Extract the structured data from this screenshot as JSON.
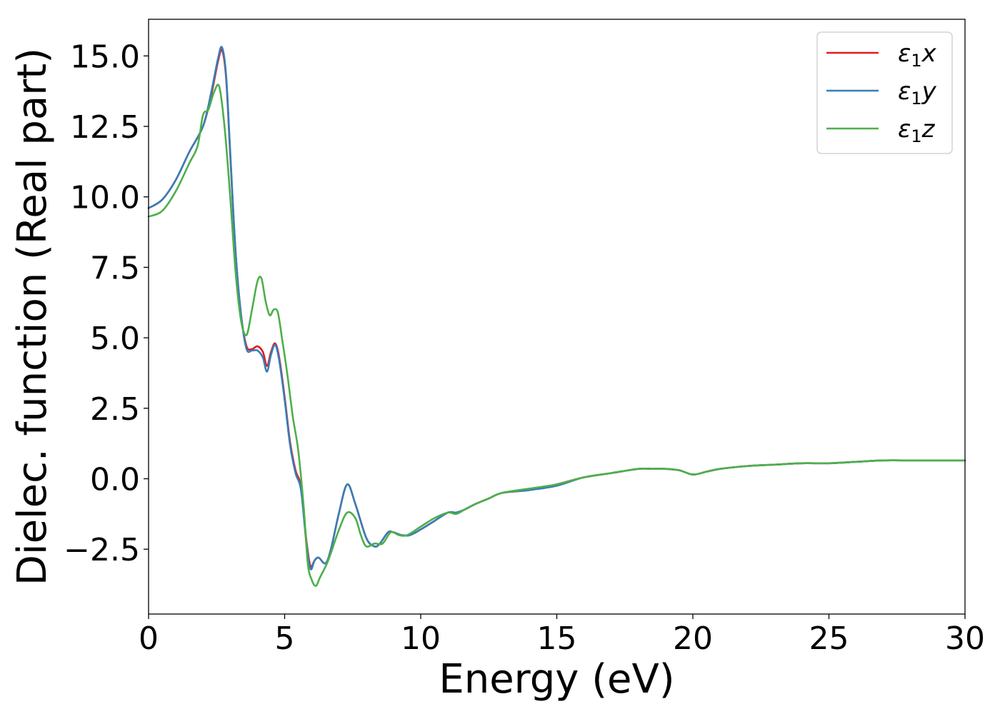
{
  "chart_data": {
    "type": "line",
    "title": "",
    "xlabel": "Energy (eV)",
    "ylabel": "Dielec. function (Real part)",
    "xlim": [
      0,
      30
    ],
    "ylim": [
      -4.8,
      16.3
    ],
    "x_ticks": [
      0,
      5,
      10,
      15,
      20,
      25,
      30
    ],
    "x_tick_labels": [
      "0",
      "5",
      "10",
      "15",
      "20",
      "25",
      "30"
    ],
    "y_ticks": [
      -2.5,
      0.0,
      2.5,
      5.0,
      7.5,
      10.0,
      12.5,
      15.0
    ],
    "y_tick_labels": [
      "−2.5",
      "0.0",
      "2.5",
      "5.0",
      "7.5",
      "10.0",
      "12.5",
      "15.0"
    ],
    "grid": false,
    "legend_position": "top-right",
    "series": [
      {
        "name": "ε1x",
        "legend_symbol": "ε",
        "legend_subscript": "1",
        "legend_component": "x",
        "color": "#e41a1c",
        "x": [
          0,
          0.5,
          1.0,
          1.5,
          2.0,
          2.3,
          2.55,
          2.7,
          2.85,
          3.0,
          3.2,
          3.4,
          3.6,
          3.8,
          4.0,
          4.2,
          4.35,
          4.5,
          4.65,
          4.8,
          5.0,
          5.2,
          5.4,
          5.6,
          5.8,
          5.95,
          6.1,
          6.25,
          6.5,
          6.7,
          7.0,
          7.3,
          7.6,
          8.0,
          8.3,
          8.5,
          8.8,
          9.0,
          9.3,
          9.6,
          10.0,
          10.5,
          11.0,
          11.3,
          11.6,
          12.0,
          12.5,
          13.0,
          14.0,
          15.0,
          16.0,
          17.0,
          18.0,
          18.5,
          19.0,
          19.5,
          20.0,
          20.5,
          21.0,
          22.0,
          23.0,
          24.0,
          25.0,
          26.0,
          27.0,
          28.0,
          29.0,
          30.0
        ],
        "y": [
          9.6,
          9.9,
          10.6,
          11.6,
          12.5,
          13.6,
          14.8,
          15.2,
          14.2,
          11.5,
          8.0,
          5.8,
          4.7,
          4.6,
          4.7,
          4.5,
          4.0,
          4.5,
          4.8,
          4.3,
          2.9,
          1.3,
          0.3,
          -0.3,
          -2.2,
          -3.1,
          -2.9,
          -2.8,
          -3.0,
          -2.5,
          -1.2,
          -0.2,
          -0.9,
          -2.1,
          -2.4,
          -2.3,
          -1.9,
          -1.9,
          -2.0,
          -2.0,
          -1.8,
          -1.5,
          -1.2,
          -1.2,
          -1.1,
          -0.9,
          -0.7,
          -0.5,
          -0.4,
          -0.2,
          0.05,
          0.2,
          0.35,
          0.35,
          0.35,
          0.3,
          0.15,
          0.25,
          0.35,
          0.45,
          0.5,
          0.55,
          0.55,
          0.6,
          0.65,
          0.65,
          0.65,
          0.65
        ]
      },
      {
        "name": "ε1y",
        "legend_symbol": "ε",
        "legend_subscript": "1",
        "legend_component": "y",
        "color": "#377eb8",
        "x": [
          0,
          0.5,
          1.0,
          1.5,
          2.0,
          2.3,
          2.55,
          2.7,
          2.85,
          3.0,
          3.2,
          3.4,
          3.6,
          3.8,
          4.0,
          4.2,
          4.35,
          4.5,
          4.65,
          4.8,
          5.0,
          5.2,
          5.4,
          5.6,
          5.8,
          5.95,
          6.1,
          6.25,
          6.5,
          6.7,
          7.0,
          7.3,
          7.6,
          8.0,
          8.3,
          8.5,
          8.8,
          9.0,
          9.3,
          9.6,
          10.0,
          10.5,
          11.0,
          11.3,
          11.6,
          12.0,
          12.5,
          13.0,
          14.0,
          15.0,
          16.0,
          17.0,
          18.0,
          18.5,
          19.0,
          19.5,
          20.0,
          20.5,
          21.0,
          22.0,
          23.0,
          24.0,
          25.0,
          26.0,
          27.0,
          28.0,
          29.0,
          30.0
        ],
        "y": [
          9.6,
          9.9,
          10.6,
          11.6,
          12.5,
          13.7,
          14.9,
          15.3,
          14.3,
          11.6,
          8.0,
          5.8,
          4.6,
          4.55,
          4.55,
          4.3,
          3.8,
          4.4,
          4.75,
          4.2,
          2.8,
          1.2,
          0.2,
          -0.4,
          -2.3,
          -3.2,
          -2.9,
          -2.8,
          -3.0,
          -2.5,
          -1.2,
          -0.2,
          -0.9,
          -2.1,
          -2.4,
          -2.3,
          -1.9,
          -1.9,
          -2.0,
          -2.0,
          -1.8,
          -1.5,
          -1.2,
          -1.2,
          -1.1,
          -0.9,
          -0.7,
          -0.5,
          -0.4,
          -0.25,
          0.05,
          0.2,
          0.35,
          0.35,
          0.35,
          0.3,
          0.15,
          0.25,
          0.35,
          0.45,
          0.5,
          0.55,
          0.55,
          0.6,
          0.65,
          0.65,
          0.65,
          0.65
        ]
      },
      {
        "name": "ε1z",
        "legend_symbol": "ε",
        "legend_subscript": "1",
        "legend_component": "z",
        "color": "#4daf4a",
        "x": [
          0,
          0.5,
          1.0,
          1.5,
          1.8,
          2.0,
          2.2,
          2.4,
          2.6,
          2.8,
          3.0,
          3.2,
          3.4,
          3.6,
          3.8,
          4.0,
          4.15,
          4.3,
          4.45,
          4.6,
          4.75,
          4.9,
          5.1,
          5.3,
          5.5,
          5.7,
          5.85,
          6.0,
          6.15,
          6.3,
          6.6,
          7.0,
          7.3,
          7.6,
          7.8,
          8.0,
          8.3,
          8.6,
          8.9,
          9.2,
          9.5,
          10.0,
          10.5,
          11.0,
          11.3,
          11.6,
          12.0,
          12.5,
          13.0,
          14.0,
          15.0,
          16.0,
          17.0,
          18.0,
          18.5,
          19.0,
          19.5,
          20.0,
          20.5,
          21.0,
          22.0,
          23.0,
          24.0,
          25.0,
          26.0,
          27.0,
          28.0,
          29.0,
          30.0
        ],
        "y": [
          9.3,
          9.5,
          10.2,
          11.2,
          11.8,
          12.9,
          13.1,
          13.7,
          13.9,
          12.4,
          10.0,
          7.3,
          5.6,
          5.1,
          6.0,
          7.0,
          7.1,
          6.3,
          5.8,
          6.0,
          5.9,
          5.0,
          3.7,
          2.2,
          1.0,
          -1.0,
          -3.0,
          -3.6,
          -3.8,
          -3.5,
          -2.9,
          -1.8,
          -1.2,
          -1.4,
          -2.0,
          -2.4,
          -2.3,
          -2.3,
          -1.9,
          -2.0,
          -2.0,
          -1.7,
          -1.4,
          -1.2,
          -1.25,
          -1.1,
          -0.9,
          -0.7,
          -0.5,
          -0.35,
          -0.2,
          0.05,
          0.2,
          0.35,
          0.35,
          0.35,
          0.3,
          0.15,
          0.25,
          0.35,
          0.45,
          0.5,
          0.55,
          0.55,
          0.6,
          0.65,
          0.65,
          0.65,
          0.65
        ]
      }
    ]
  }
}
